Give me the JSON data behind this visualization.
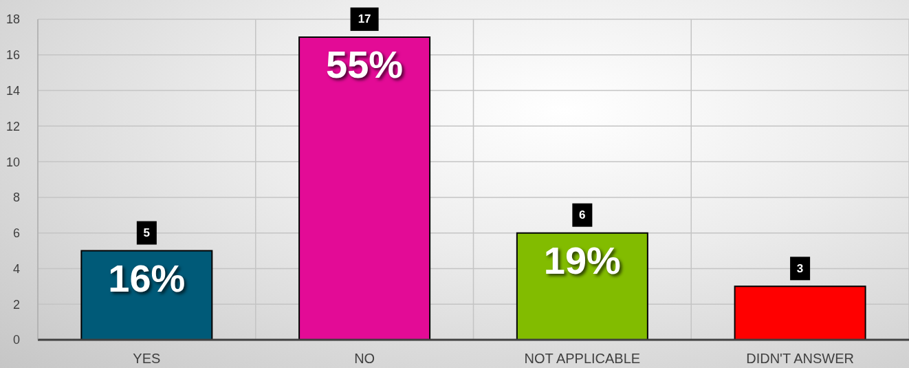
{
  "chart_data": {
    "type": "bar",
    "categories": [
      "YES",
      "NO",
      "NOT APPLICABLE",
      "DIDN'T ANSWER"
    ],
    "values": [
      5,
      17,
      6,
      3
    ],
    "colors": [
      "#005a78",
      "#e30b96",
      "#82bc00",
      "#ff0000"
    ],
    "ylim": [
      0,
      18
    ],
    "yticks": [
      0,
      2,
      4,
      6,
      8,
      10,
      12,
      14,
      16,
      18
    ],
    "grid": true,
    "data_labels": true,
    "annotations": [
      "16%",
      "55%",
      "19%"
    ]
  }
}
